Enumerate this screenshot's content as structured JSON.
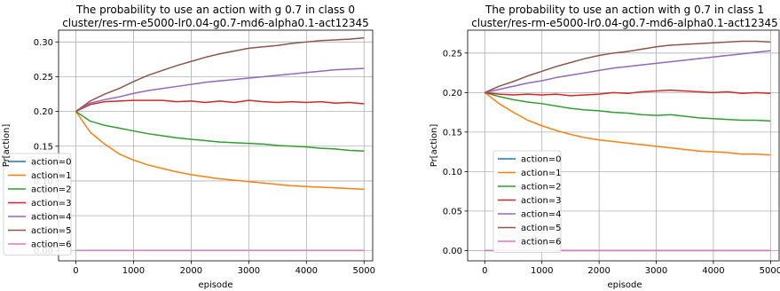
{
  "chart_data": [
    {
      "type": "line",
      "title": "The probability to use an action with g 0.7 in class 0",
      "subtitle": "cluster/res-rm-e5000-lr0.04-g0.7-md6-alpha0.1-act12345",
      "xlabel": "episode",
      "ylabel": "Pr[action]",
      "xlim": [
        -300,
        5150
      ],
      "ylim": [
        -0.015,
        0.317
      ],
      "xticks": [
        0,
        1000,
        2000,
        3000,
        4000,
        5000
      ],
      "yticks": [
        0.0,
        0.05,
        0.1,
        0.15,
        0.2,
        0.25,
        0.3
      ],
      "ytick_labels": [
        "0.00",
        "0.05",
        "0.10",
        "0.15",
        "0.20",
        "0.25",
        "0.30"
      ],
      "grid": true,
      "legend_position": "center-left",
      "x": [
        0,
        250,
        500,
        750,
        1000,
        1250,
        1500,
        1750,
        2000,
        2250,
        2500,
        2750,
        3000,
        3250,
        3500,
        3750,
        4000,
        4250,
        4500,
        4750,
        5000
      ],
      "series": [
        {
          "name": "action=0",
          "color": "#1f77b4",
          "values": [
            0,
            0,
            0,
            0,
            0,
            0,
            0,
            0,
            0,
            0,
            0,
            0,
            0,
            0,
            0,
            0,
            0,
            0,
            0,
            0,
            0
          ]
        },
        {
          "name": "action=1",
          "color": "#ff7f0e",
          "values": [
            0.2,
            0.17,
            0.153,
            0.139,
            0.13,
            0.123,
            0.118,
            0.113,
            0.109,
            0.106,
            0.103,
            0.101,
            0.099,
            0.097,
            0.095,
            0.093,
            0.092,
            0.091,
            0.09,
            0.089,
            0.088
          ]
        },
        {
          "name": "action=2",
          "color": "#2ca02c",
          "values": [
            0.2,
            0.186,
            0.18,
            0.176,
            0.172,
            0.168,
            0.165,
            0.162,
            0.16,
            0.158,
            0.156,
            0.155,
            0.154,
            0.153,
            0.151,
            0.15,
            0.149,
            0.147,
            0.146,
            0.144,
            0.143
          ]
        },
        {
          "name": "action=3",
          "color": "#d62728",
          "values": [
            0.2,
            0.21,
            0.214,
            0.215,
            0.216,
            0.216,
            0.216,
            0.214,
            0.215,
            0.213,
            0.215,
            0.213,
            0.216,
            0.214,
            0.213,
            0.214,
            0.213,
            0.214,
            0.212,
            0.213,
            0.211
          ]
        },
        {
          "name": "action=4",
          "color": "#9467bd",
          "values": [
            0.2,
            0.212,
            0.217,
            0.221,
            0.226,
            0.23,
            0.233,
            0.236,
            0.239,
            0.242,
            0.244,
            0.246,
            0.248,
            0.25,
            0.252,
            0.254,
            0.256,
            0.258,
            0.26,
            0.261,
            0.262
          ]
        },
        {
          "name": "action=5",
          "color": "#8c564b",
          "values": [
            0.2,
            0.215,
            0.225,
            0.233,
            0.243,
            0.252,
            0.259,
            0.266,
            0.272,
            0.278,
            0.283,
            0.287,
            0.291,
            0.293,
            0.295,
            0.298,
            0.3,
            0.302,
            0.303,
            0.304,
            0.306
          ]
        },
        {
          "name": "action=6",
          "color": "#e377c2",
          "values": [
            0,
            0,
            0,
            0,
            0,
            0,
            0,
            0,
            0,
            0,
            0,
            0,
            0,
            0,
            0,
            0,
            0,
            0,
            0,
            0,
            0
          ]
        }
      ]
    },
    {
      "type": "line",
      "title": "The probability to use an action with g 0.7 in class 1",
      "subtitle": "cluster/res-rm-e5000-lr0.04-g0.7-md6-alpha0.1-act12345",
      "xlabel": "episode",
      "ylabel": "Pr[action]",
      "xlim": [
        -300,
        5150
      ],
      "ylim": [
        -0.013,
        0.279
      ],
      "xticks": [
        0,
        1000,
        2000,
        3000,
        4000,
        5000
      ],
      "yticks": [
        0.0,
        0.05,
        0.1,
        0.15,
        0.2,
        0.25
      ],
      "ytick_labels": [
        "0.00",
        "0.05",
        "0.10",
        "0.15",
        "0.20",
        "0.25"
      ],
      "grid": true,
      "legend_position": "lower-left",
      "x": [
        0,
        250,
        500,
        750,
        1000,
        1250,
        1500,
        1750,
        2000,
        2250,
        2500,
        2750,
        3000,
        3250,
        3500,
        3750,
        4000,
        4250,
        4500,
        4750,
        5000
      ],
      "series": [
        {
          "name": "action=0",
          "color": "#1f77b4",
          "values": [
            0,
            0,
            0,
            0,
            0,
            0,
            0,
            0,
            0,
            0,
            0,
            0,
            0,
            0,
            0,
            0,
            0,
            0,
            0,
            0,
            0
          ]
        },
        {
          "name": "action=1",
          "color": "#ff7f0e",
          "values": [
            0.2,
            0.186,
            0.175,
            0.165,
            0.158,
            0.152,
            0.147,
            0.143,
            0.14,
            0.138,
            0.136,
            0.134,
            0.132,
            0.13,
            0.128,
            0.126,
            0.125,
            0.124,
            0.122,
            0.122,
            0.121
          ]
        },
        {
          "name": "action=2",
          "color": "#2ca02c",
          "values": [
            0.2,
            0.195,
            0.191,
            0.188,
            0.186,
            0.183,
            0.18,
            0.178,
            0.177,
            0.175,
            0.174,
            0.172,
            0.171,
            0.172,
            0.17,
            0.168,
            0.167,
            0.166,
            0.165,
            0.165,
            0.164
          ]
        },
        {
          "name": "action=3",
          "color": "#d62728",
          "values": [
            0.2,
            0.198,
            0.197,
            0.198,
            0.197,
            0.198,
            0.196,
            0.197,
            0.198,
            0.2,
            0.199,
            0.201,
            0.202,
            0.203,
            0.202,
            0.201,
            0.2,
            0.201,
            0.199,
            0.2,
            0.199
          ]
        },
        {
          "name": "action=4",
          "color": "#9467bd",
          "values": [
            0.2,
            0.204,
            0.208,
            0.212,
            0.215,
            0.219,
            0.222,
            0.225,
            0.228,
            0.231,
            0.233,
            0.235,
            0.237,
            0.239,
            0.241,
            0.243,
            0.245,
            0.247,
            0.249,
            0.251,
            0.253
          ]
        },
        {
          "name": "action=5",
          "color": "#8c564b",
          "values": [
            0.2,
            0.208,
            0.214,
            0.221,
            0.227,
            0.233,
            0.238,
            0.243,
            0.247,
            0.25,
            0.252,
            0.255,
            0.258,
            0.26,
            0.261,
            0.262,
            0.263,
            0.264,
            0.265,
            0.265,
            0.264
          ]
        },
        {
          "name": "action=6",
          "color": "#e377c2",
          "values": [
            0,
            0,
            0,
            0,
            0,
            0,
            0,
            0,
            0,
            0,
            0,
            0,
            0,
            0,
            0,
            0,
            0,
            0,
            0,
            0,
            0
          ]
        }
      ]
    }
  ]
}
